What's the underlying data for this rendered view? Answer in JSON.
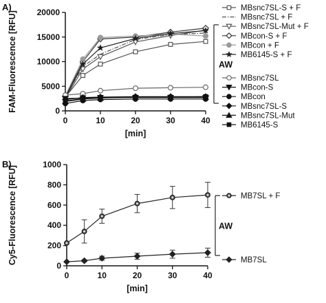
{
  "chart_data": [
    {
      "panel_label": "A)",
      "type": "line",
      "xlabel": "[min]",
      "ylabel": "FAM-Fluorescence [RFU]",
      "xlim": [
        0,
        40
      ],
      "ylim": [
        0,
        20000
      ],
      "xticks": [
        0,
        10,
        20,
        30,
        40
      ],
      "yticks": [
        0,
        5000,
        10000,
        15000,
        20000
      ],
      "ytick_labels": [
        "0",
        "5000",
        "10000",
        "15000",
        "20000"
      ],
      "x": [
        0,
        5,
        10,
        20,
        30,
        40
      ],
      "bracket_label": "AW",
      "grid": false,
      "legend_position": "right",
      "series": [
        {
          "name": "MBsnc7SL-S + F",
          "marker": "square-open",
          "line_style": "solid",
          "color": "#555555",
          "values": [
            2800,
            7200,
            9500,
            12000,
            13500,
            14100
          ]
        },
        {
          "name": "MBsnc7SL + F",
          "marker": "none",
          "line_style": "dashdot",
          "color": "#555555",
          "values": [
            3000,
            9000,
            11500,
            14500,
            15500,
            15800
          ]
        },
        {
          "name": "MBsnc7SL-Mut + F",
          "marker": "triangle-down-open",
          "line_style": "solid",
          "color": "#555555",
          "values": [
            2600,
            8500,
            11000,
            14000,
            15300,
            16400
          ]
        },
        {
          "name": "MBcon-S + F",
          "marker": "diamond-open",
          "line_style": "solid",
          "color": "#333333",
          "values": [
            2900,
            10000,
            14600,
            15000,
            16000,
            16800
          ]
        },
        {
          "name": "MBcon + F",
          "marker": "circle-filled-gray",
          "line_style": "solid",
          "color": "#999999",
          "values": [
            3100,
            10500,
            14900,
            15200,
            15600,
            15200
          ]
        },
        {
          "name": "MB6145-S + F",
          "marker": "star",
          "line_style": "solid",
          "color": "#222222",
          "values": [
            2700,
            9500,
            12800,
            14700,
            15700,
            16300
          ]
        },
        {
          "name": "MBsnc7SL",
          "marker": "circle-open",
          "line_style": "solid",
          "color": "#666666",
          "values": [
            3200,
            3500,
            4100,
            4600,
            4700,
            4800
          ]
        },
        {
          "name": "MBcon-S",
          "marker": "triangle-down-filled",
          "line_style": "solid",
          "color": "#111111",
          "values": [
            2500,
            2600,
            2700,
            2700,
            2700,
            2700
          ]
        },
        {
          "name": "MBcon",
          "marker": "circle-filled",
          "line_style": "solid",
          "color": "#111111",
          "values": [
            1500,
            2100,
            2300,
            2400,
            2400,
            2400
          ]
        },
        {
          "name": "MBsnc7SL-S",
          "marker": "diamond-filled",
          "line_style": "solid",
          "color": "#111111",
          "values": [
            2300,
            2700,
            2800,
            2900,
            2900,
            2900
          ]
        },
        {
          "name": "MBsnc7SL-Mut",
          "marker": "triangle-up-filled",
          "line_style": "solid",
          "color": "#111111",
          "values": [
            1900,
            2400,
            2600,
            2800,
            2800,
            2800
          ]
        },
        {
          "name": "MB6145-S",
          "marker": "square-filled",
          "line_style": "solid",
          "color": "#111111",
          "values": [
            2000,
            2500,
            2700,
            2800,
            2800,
            2900
          ]
        }
      ]
    },
    {
      "panel_label": "B)",
      "type": "line",
      "xlabel": "[min]",
      "ylabel": "Cy5-Fluorescence [RFU]",
      "xlim": [
        0,
        40
      ],
      "ylim": [
        0,
        1000
      ],
      "xticks": [
        0,
        10,
        20,
        30,
        40
      ],
      "yticks": [
        0,
        200,
        400,
        600,
        800,
        1000
      ],
      "ytick_labels": [
        "0",
        "200",
        "400",
        "600",
        "800",
        "1000"
      ],
      "x": [
        0,
        5,
        10,
        20,
        30,
        40
      ],
      "bracket_label": "AW",
      "grid": false,
      "legend_position": "right",
      "series": [
        {
          "name": "MB7SL + F",
          "marker": "circle-dot",
          "line_style": "solid",
          "color": "#222222",
          "values": [
            225,
            340,
            490,
            615,
            675,
            700
          ],
          "errors": [
            0,
            115,
            70,
            90,
            110,
            125
          ]
        },
        {
          "name": "MB7SL",
          "marker": "diamond-filled",
          "line_style": "solid",
          "color": "#222222",
          "values": [
            40,
            50,
            75,
            95,
            115,
            130
          ],
          "errors": [
            0,
            10,
            20,
            30,
            40,
            45
          ]
        }
      ]
    }
  ]
}
